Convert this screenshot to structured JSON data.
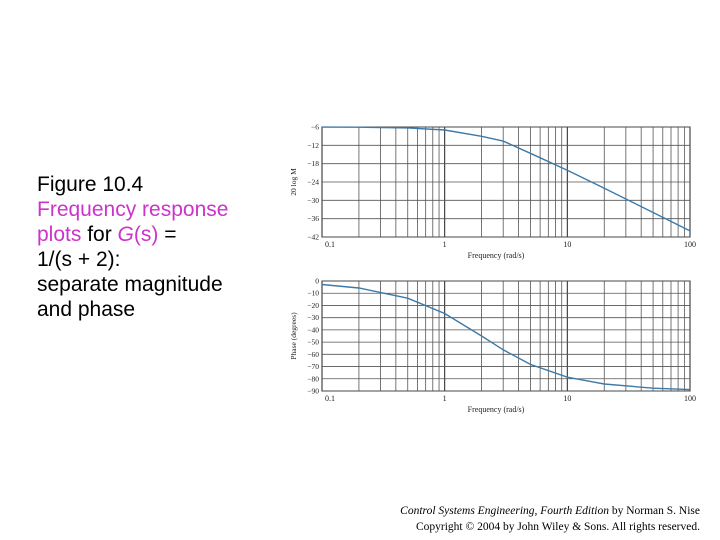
{
  "caption": {
    "figure": "Figure 10.4",
    "line1": "Frequency response",
    "line2_a": "plots",
    "line2_b": " for ",
    "line2_c": "G",
    "line2_d": "(s)",
    "line2_e": " =",
    "line3": "1/(s + 2):",
    "line4": "separate magnitude",
    "line5": "and phase",
    "accent_color": "#cc33cc"
  },
  "credit": {
    "book": "Control Systems Engineering, Fourth Edition",
    "by": " by Norman S. Nise",
    "copyright": "Copyright © 2004 by John Wiley & Sons. All rights reserved."
  },
  "chart_data": [
    {
      "type": "line",
      "title": "",
      "xlabel": "Frequency (rad/s)",
      "ylabel": "20 log M",
      "xscale": "log",
      "xlim": [
        0.1,
        100
      ],
      "ylim": [
        -6,
        -42
      ],
      "x_ticks": [
        "0.1",
        "1",
        "10",
        "100"
      ],
      "y_ticks": [
        "−6",
        "−12",
        "−18",
        "−24",
        "−30",
        "−36",
        "−42"
      ],
      "grid": true,
      "line_color": "#3d7aa8",
      "x": [
        0.1,
        0.2,
        0.5,
        1,
        2,
        3,
        5,
        10,
        20,
        50,
        100
      ],
      "y": [
        -6.03,
        -6.06,
        -6.3,
        -6.99,
        -9.03,
        -10.63,
        -14.6,
        -20.17,
        -26.06,
        -33.98,
        -39.99
      ]
    },
    {
      "type": "line",
      "title": "",
      "xlabel": "Frequency (rad/s)",
      "ylabel": "Phase (degrees)",
      "xscale": "log",
      "xlim": [
        0.1,
        100
      ],
      "ylim": [
        0,
        -90
      ],
      "x_ticks": [
        "0.1",
        "1",
        "10",
        "100"
      ],
      "y_ticks": [
        "0",
        "−10",
        "−20",
        "−30",
        "−40",
        "−50",
        "−60",
        "−70",
        "−80",
        "−90"
      ],
      "grid": true,
      "line_color": "#3d7aa8",
      "x": [
        0.1,
        0.2,
        0.5,
        1,
        2,
        3,
        5,
        10,
        20,
        50,
        100
      ],
      "y": [
        -2.86,
        -5.71,
        -14.04,
        -26.57,
        -45,
        -56.31,
        -68.2,
        -78.69,
        -84.29,
        -87.71,
        -88.85
      ]
    }
  ]
}
